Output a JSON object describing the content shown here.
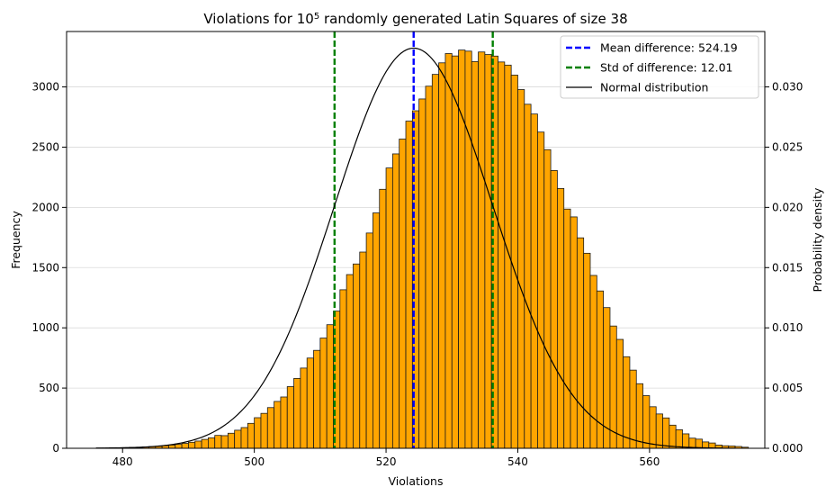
{
  "chart_data": {
    "type": "bar",
    "title": "Violations for 10",
    "title_superscript": "5",
    "title_suffix": " randomly generated Latin Squares of size 38",
    "xlabel": "Violations",
    "ylabel": "Frequency",
    "y2label": "Probability density",
    "xlim": [
      471.5,
      577.5
    ],
    "ylim": [
      0,
      3460
    ],
    "y2lim": [
      0,
      0.0346
    ],
    "x_ticks": [
      "480",
      "500",
      "520",
      "540",
      "560"
    ],
    "y_ticks": [
      "0",
      "500",
      "1000",
      "1500",
      "2000",
      "2500",
      "3000"
    ],
    "y2_ticks": [
      "0.000",
      "0.005",
      "0.010",
      "0.015",
      "0.020",
      "0.025",
      "0.030"
    ],
    "grid": "horizontal",
    "legend_position": "top-right",
    "colors": {
      "bar": "#ffa500",
      "edge": "#1a1a1a",
      "mean": "#0000ff",
      "std": "#008000",
      "normal": "#000000",
      "grid": "#d9d9d9"
    },
    "bins": {
      "start": 476,
      "width": 1,
      "counts": [
        3,
        3,
        5,
        5,
        6,
        8,
        9,
        12,
        14,
        17,
        22,
        27,
        33,
        41,
        50,
        60,
        74,
        87,
        107,
        105,
        125,
        150,
        172,
        207,
        254,
        290,
        338,
        389,
        426,
        512,
        580,
        666,
        749,
        813,
        915,
        1026,
        1139,
        1316,
        1442,
        1530,
        1629,
        1787,
        1954,
        2150,
        2327,
        2444,
        2567,
        2716,
        2802,
        2900,
        3006,
        3104,
        3200,
        3277,
        3257,
        3306,
        3297,
        3210,
        3290,
        3269,
        3256,
        3207,
        3181,
        3098,
        2978,
        2856,
        2775,
        2625,
        2479,
        2306,
        2157,
        1986,
        1921,
        1747,
        1619,
        1435,
        1306,
        1168,
        1015,
        904,
        760,
        649,
        536,
        437,
        345,
        285,
        252,
        192,
        154,
        120,
        84,
        76,
        53,
        44,
        27,
        21,
        19,
        15,
        9
      ]
    },
    "vlines": [
      {
        "label": "Mean difference: 524.19",
        "x": 524.19,
        "color": "#0000ff",
        "style": "dashed"
      },
      {
        "label": "Std of difference: 12.01",
        "x": [
          512.18,
          536.2
        ],
        "color": "#008000",
        "style": "dashed"
      }
    ],
    "normal_curve": {
      "label": "Normal distribution",
      "mean": 524.19,
      "std": 12.01,
      "scale": 100000,
      "x_range": [
        476,
        573
      ]
    }
  }
}
